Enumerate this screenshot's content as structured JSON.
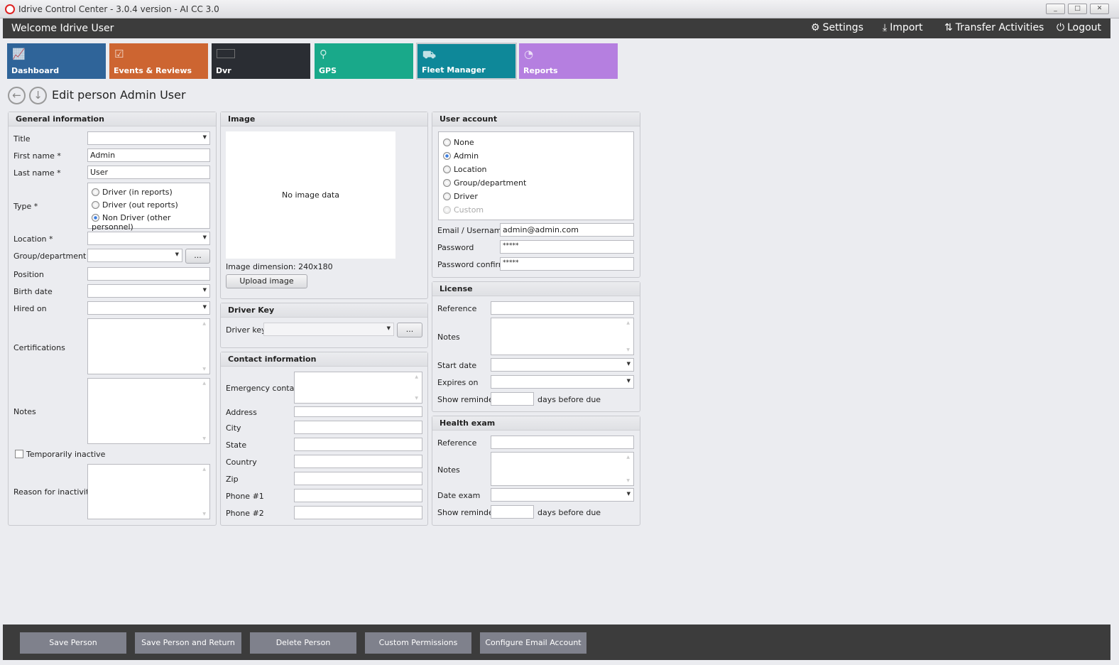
{
  "window": {
    "title": "Idrive Control Center - 3.0.4 version - AI CC 3.0",
    "minimize": "_",
    "maximize": "□",
    "close": "✕"
  },
  "header": {
    "welcome": "Welcome Idrive User",
    "settings": "Settings",
    "import": "Import",
    "transfer": "Transfer Activities",
    "logout": "Logout"
  },
  "tiles": [
    {
      "label": "Dashboard",
      "color": "#2f6499"
    },
    {
      "label": "Events & Reviews",
      "color": "#cd6531"
    },
    {
      "label": "Dvr",
      "color": "#2a2d33"
    },
    {
      "label": "GPS",
      "color": "#19a98a"
    },
    {
      "label": "Fleet Manager",
      "color": "#0e8899",
      "active": true
    },
    {
      "label": "Reports",
      "color": "#b57fe0"
    }
  ],
  "page": {
    "title": "Edit person Admin User"
  },
  "general": {
    "header": "General information",
    "title_label": "Title",
    "title_value": "",
    "first_label": "First name *",
    "first_value": "Admin",
    "last_label": "Last name *",
    "last_value": "User",
    "type_label": "Type *",
    "type_options": [
      "Driver (in reports)",
      "Driver (out reports)",
      "Non Driver (other personnel)"
    ],
    "type_selected": "Non Driver (other personnel)",
    "location_label": "Location *",
    "group_label": "Group/department",
    "group_button": "...",
    "position_label": "Position",
    "birth_label": "Birth date",
    "hired_label": "Hired on",
    "cert_label": "Certifications",
    "notes_label": "Notes",
    "inactive_label": "Temporarily inactive",
    "inactive_checked": false,
    "reason_label": "Reason for inactivity"
  },
  "image": {
    "header": "Image",
    "empty": "No image data",
    "dimension_label": "Image dimension:",
    "dimension_value": "240x180",
    "upload": "Upload image"
  },
  "driver_key": {
    "header": "Driver Key",
    "label": "Driver key",
    "button": "..."
  },
  "contact": {
    "header": "Contact information",
    "emergency": "Emergency contact",
    "address": "Address",
    "city": "City",
    "state": "State",
    "country": "Country",
    "zip": "Zip",
    "phone1": "Phone #1",
    "phone2": "Phone #2"
  },
  "account": {
    "header": "User account",
    "options": [
      "None",
      "Admin",
      "Location",
      "Group/department",
      "Driver",
      "Custom"
    ],
    "selected": "Admin",
    "email_label": "Email / Username",
    "email_value": "admin@admin.com",
    "password_label": "Password",
    "password_value": "*****",
    "confirm_label": "Password confirm",
    "confirm_value": "*****"
  },
  "license": {
    "header": "License",
    "reference": "Reference",
    "notes": "Notes",
    "start": "Start date",
    "expires": "Expires on",
    "reminder": "Show reminder",
    "days": "days before due"
  },
  "health": {
    "header": "Health exam",
    "reference": "Reference",
    "notes": "Notes",
    "date": "Date exam",
    "reminder": "Show reminder",
    "days": "days before due"
  },
  "actions": [
    "Save Person",
    "Save Person and Return",
    "Delete Person",
    "Custom Permissions",
    "Configure Email Account"
  ]
}
